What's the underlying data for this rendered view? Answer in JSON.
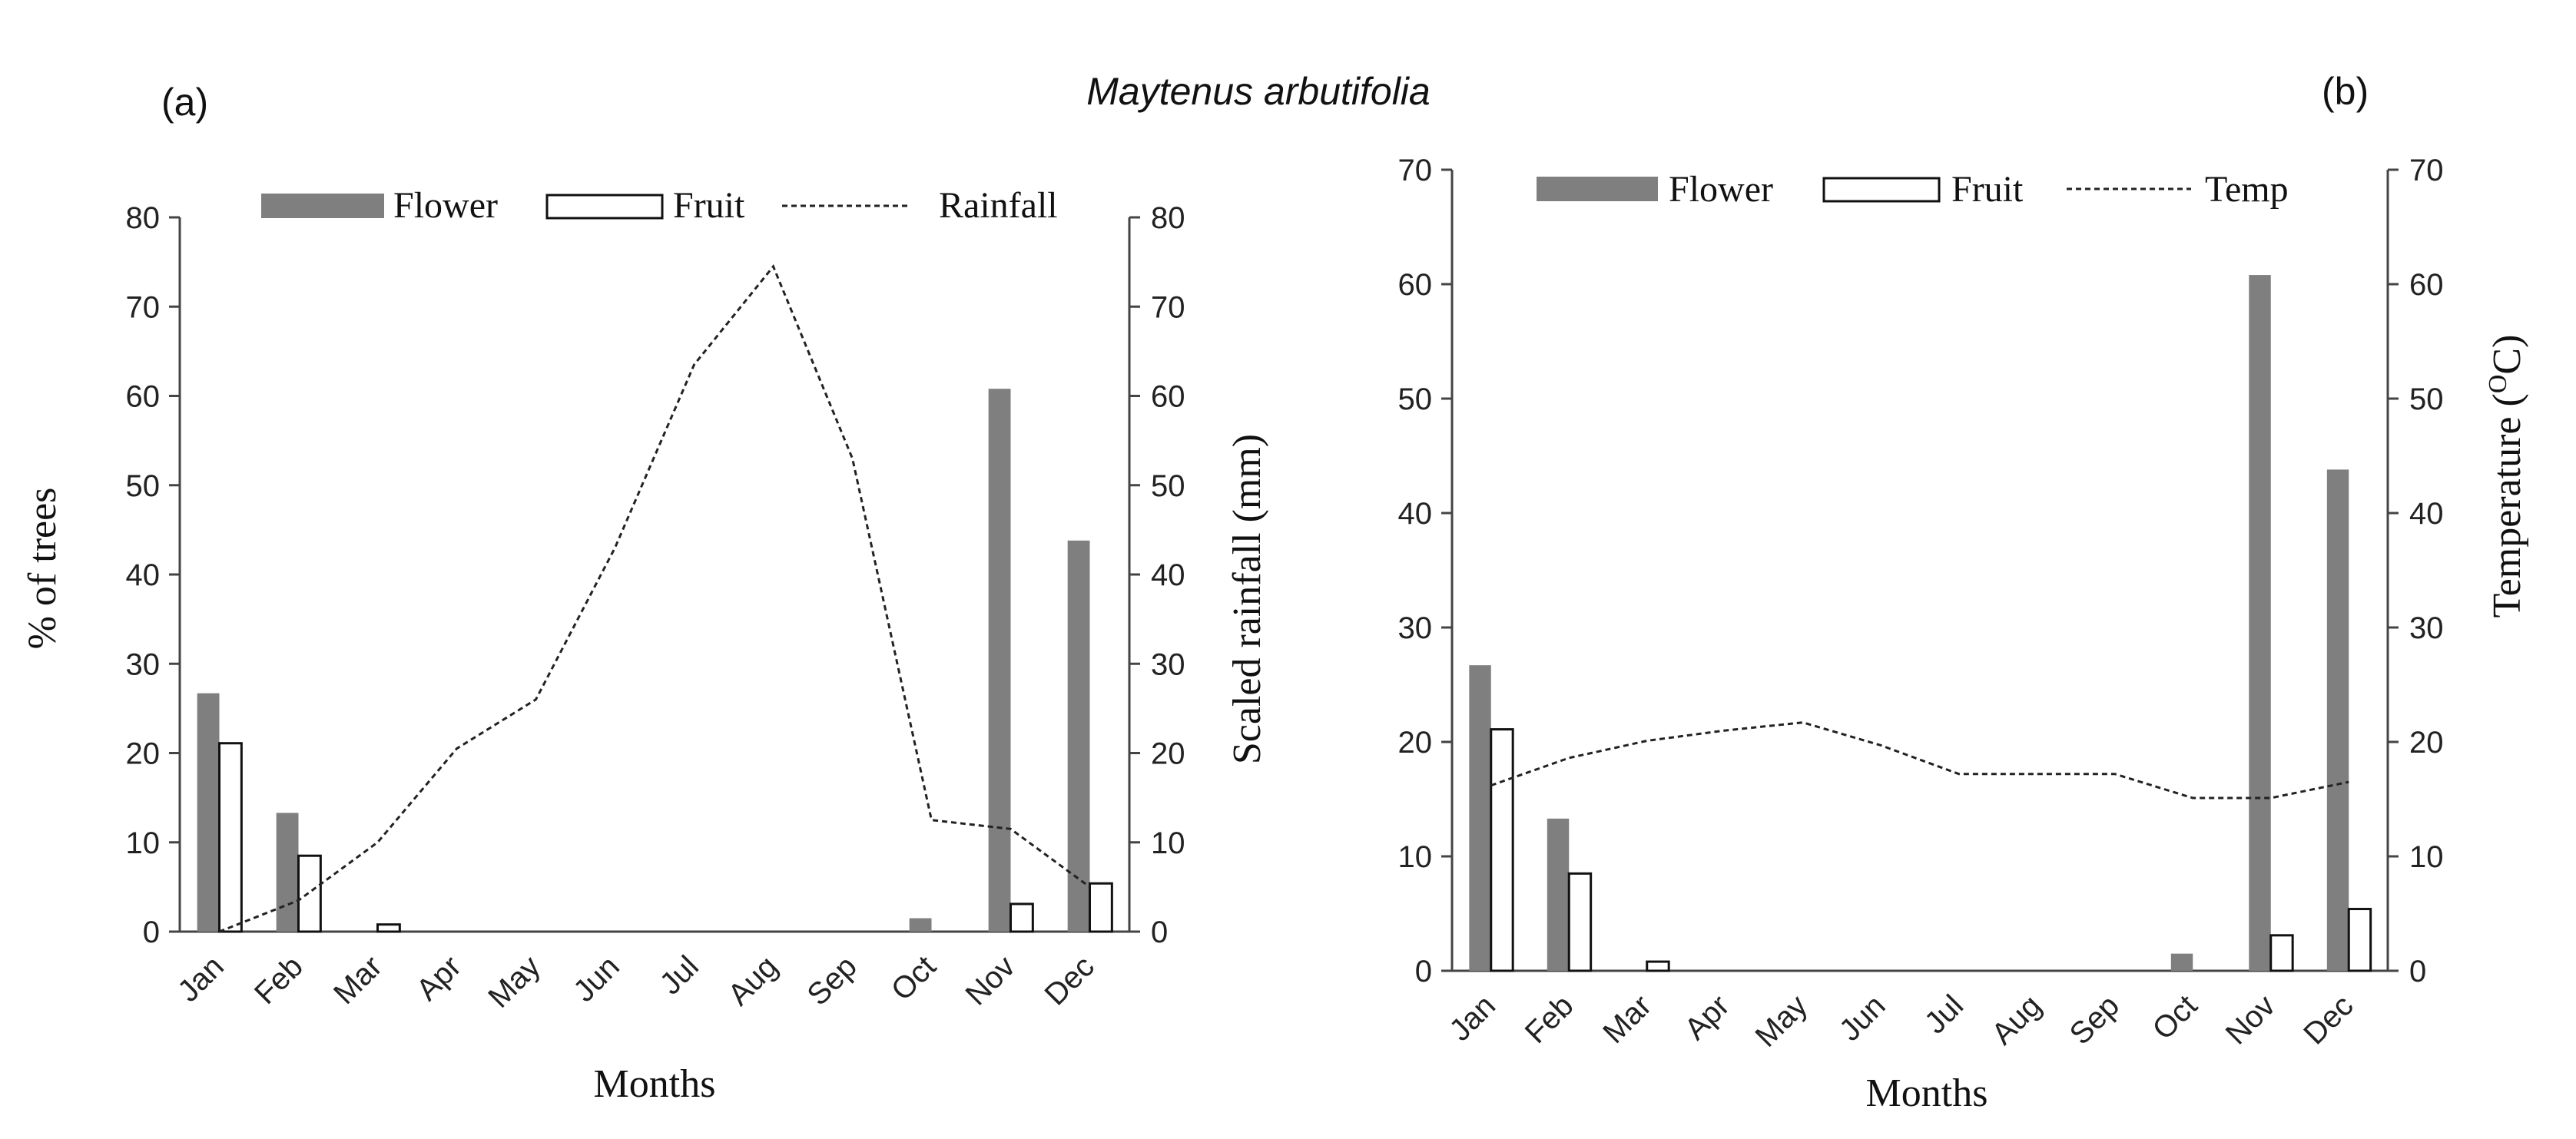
{
  "title": "Maytenus arbutifolia",
  "colors": {
    "flower": "#7f7f7f",
    "fruit": "#ffffff",
    "line": "#222222",
    "axis": "#444444"
  },
  "chart_data": [
    {
      "panel_label": "(a)",
      "type": "bar",
      "categories": [
        "Jan",
        "Feb",
        "Mar",
        "Apr",
        "May",
        "Jun",
        "Jul",
        "Aug",
        "Sep",
        "Oct",
        "Nov",
        "Dec"
      ],
      "series": [
        {
          "name": "Flower",
          "kind": "bar",
          "axis": "left",
          "values": [
            26.7,
            13.3,
            0,
            0,
            0,
            0,
            0,
            0,
            0,
            1.5,
            60.8,
            43.8
          ]
        },
        {
          "name": "Fruit",
          "kind": "bar",
          "axis": "left",
          "values": [
            21.1,
            8.5,
            0.8,
            0,
            0,
            0,
            0,
            0,
            0,
            0,
            3.1,
            5.4
          ]
        },
        {
          "name": "Rainfall",
          "kind": "line",
          "axis": "right",
          "values": [
            0,
            3.5,
            10,
            20.5,
            26,
            43,
            63.5,
            74.5,
            53,
            12.5,
            11.5,
            5
          ]
        }
      ],
      "xlabel": "Months",
      "ylabel": "% of trees",
      "y2label": "Scaled rainfall (mm)",
      "ylim": [
        0,
        80
      ],
      "y2lim": [
        0,
        80
      ],
      "yticks": [
        "0",
        "10",
        "20",
        "30",
        "40",
        "50",
        "60",
        "70",
        "80"
      ],
      "y2ticks": [
        "0",
        "10",
        "20",
        "30",
        "40",
        "50",
        "60",
        "70",
        "80"
      ],
      "legend": [
        "Flower",
        "Fruit",
        "Rainfall"
      ]
    },
    {
      "panel_label": "(b)",
      "type": "bar",
      "categories": [
        "Jan",
        "Feb",
        "Mar",
        "Apr",
        "May",
        "Jun",
        "Jul",
        "Aug",
        "Sep",
        "Oct",
        "Nov",
        "Dec"
      ],
      "series": [
        {
          "name": "Flower",
          "kind": "bar",
          "axis": "left",
          "values": [
            26.7,
            13.3,
            0,
            0,
            0,
            0,
            0,
            0,
            0,
            1.5,
            60.8,
            43.8
          ]
        },
        {
          "name": "Fruit",
          "kind": "bar",
          "axis": "left",
          "values": [
            21.1,
            8.5,
            0.8,
            0,
            0,
            0,
            0,
            0,
            0,
            0,
            3.1,
            5.4
          ]
        },
        {
          "name": "Temp",
          "kind": "line",
          "axis": "right",
          "values": [
            16.2,
            18.6,
            20.1,
            21,
            21.7,
            19.7,
            17.2,
            17.2,
            17.2,
            15.1,
            15.1,
            16.5
          ]
        }
      ],
      "xlabel": "Months",
      "ylabel": "",
      "y2label_prefix": "Temperature (",
      "y2label_sup": "O",
      "y2label_suffix": "C)",
      "ylim": [
        0,
        70
      ],
      "y2lim": [
        0,
        70
      ],
      "yticks": [
        "0",
        "10",
        "20",
        "30",
        "40",
        "50",
        "60",
        "70"
      ],
      "y2ticks": [
        "0",
        "10",
        "20",
        "30",
        "40",
        "50",
        "60",
        "70"
      ],
      "legend": [
        "Flower",
        "Fruit",
        "Temp"
      ]
    }
  ]
}
